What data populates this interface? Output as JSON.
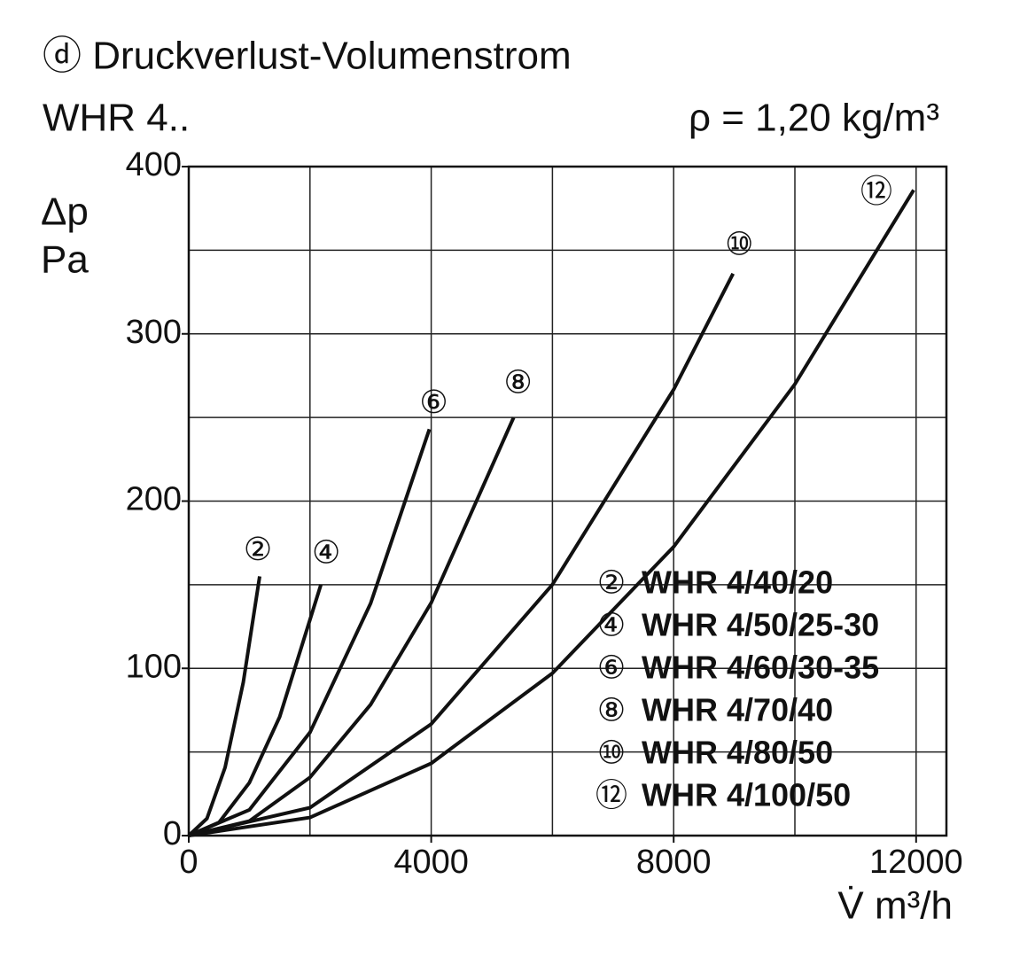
{
  "chart_data": {
    "type": "line",
    "title": "ⓓ Druckverlust-Volumenstrom",
    "subtitle": "WHR 4..",
    "annotation": "ρ = 1,20 kg/m³",
    "y_label": "Δp",
    "y_unit": "Pa",
    "x_label": "V̇ m³/h",
    "xlim": [
      0,
      12500
    ],
    "ylim": [
      0,
      400
    ],
    "xticks": [
      0,
      4000,
      8000,
      12000
    ],
    "yticks": [
      0,
      100,
      200,
      300,
      400
    ],
    "x_gridlines": [
      2000,
      4000,
      6000,
      8000,
      10000,
      12000
    ],
    "y_gridlines": [
      50,
      100,
      150,
      200,
      250,
      300,
      350
    ],
    "grid": true,
    "legend": "lower right",
    "series": [
      {
        "label": "②",
        "name": "WHR 4/40/20",
        "color": "#111111",
        "x": [
          0,
          300,
          600,
          900,
          1170
        ],
        "values": [
          0,
          10.2,
          40.8,
          91.7,
          155
        ]
      },
      {
        "label": "④",
        "name": "WHR 4/50/25-30",
        "color": "#111111",
        "x": [
          0,
          500,
          1000,
          1500,
          2180
        ],
        "values": [
          0,
          7.9,
          31.6,
          71,
          150
        ]
      },
      {
        "label": "⑥",
        "name": "WHR 4/60/30-35",
        "color": "#111111",
        "x": [
          0,
          1000,
          2000,
          3000,
          3970
        ],
        "values": [
          0,
          15.4,
          61.7,
          138.8,
          243
        ]
      },
      {
        "label": "⑧",
        "name": "WHR 4/70/40",
        "color": "#111111",
        "x": [
          0,
          1000,
          2000,
          3000,
          4000,
          5360
        ],
        "values": [
          0,
          8.7,
          34.8,
          78.3,
          139.2,
          250
        ]
      },
      {
        "label": "⑩",
        "name": "WHR 4/80/50",
        "color": "#111111",
        "x": [
          0,
          2000,
          4000,
          6000,
          8000,
          8980
        ],
        "values": [
          0,
          16.7,
          66.7,
          150.1,
          266.7,
          336
        ]
      },
      {
        "label": "⑫",
        "name": "WHR 4/100/50",
        "color": "#111111",
        "x": [
          0,
          2000,
          4000,
          6000,
          8000,
          10000,
          11960
        ],
        "values": [
          0,
          10.8,
          43.2,
          97.1,
          172.7,
          269.9,
          386
        ]
      }
    ]
  }
}
